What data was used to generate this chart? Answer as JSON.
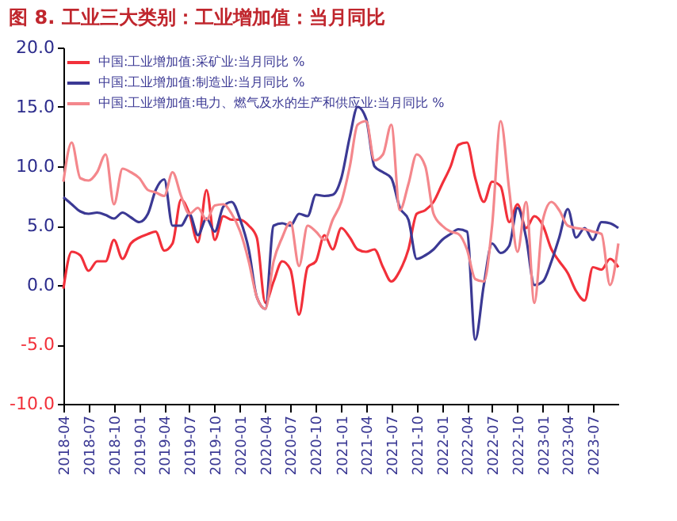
{
  "chart_data": {
    "type": "line",
    "title": "图 8. 工业三大类别：工业增加值：当月同比",
    "x": [
      "2018-04",
      "2018-05",
      "2018-06",
      "2018-07",
      "2018-08",
      "2018-09",
      "2018-10",
      "2018-11",
      "2018-12",
      "2019-01",
      "2019-02",
      "2019-03",
      "2019-04",
      "2019-05",
      "2019-06",
      "2019-07",
      "2019-08",
      "2019-09",
      "2019-10",
      "2019-11",
      "2019-12",
      "2020-01",
      "2020-02",
      "2020-03",
      "2020-04",
      "2020-05",
      "2020-06",
      "2020-07",
      "2020-08",
      "2020-09",
      "2020-10",
      "2020-11",
      "2020-12",
      "2021-01",
      "2021-02",
      "2021-03",
      "2021-04",
      "2021-05",
      "2021-06",
      "2021-07",
      "2021-08",
      "2021-09",
      "2021-10",
      "2021-11",
      "2021-12",
      "2022-01",
      "2022-02",
      "2022-03",
      "2022-04",
      "2022-05",
      "2022-06",
      "2022-07",
      "2022-08",
      "2022-09",
      "2022-10",
      "2022-11",
      "2022-12",
      "2023-01",
      "2023-02",
      "2023-03",
      "2023-04",
      "2023-05",
      "2023-06",
      "2023-07",
      "2023-08",
      "2023-09",
      "2023-10"
    ],
    "series": [
      {
        "name": "中国:工业增加值:采矿业:当月同比 %",
        "color": "#f2303a",
        "values": [
          -0.3,
          2.8,
          2.5,
          1.2,
          2.0,
          2.0,
          3.8,
          2.2,
          3.5,
          4.0,
          4.3,
          4.5,
          2.9,
          3.5,
          7.2,
          6.0,
          3.6,
          8.0,
          3.8,
          5.8,
          5.5,
          5.5,
          5.0,
          4.0,
          -1.5,
          0.3,
          2.0,
          1.3,
          -2.5,
          1.5,
          2.0,
          4.2,
          3.0,
          4.8,
          4.0,
          3.0,
          2.8,
          3.0,
          1.5,
          0.3,
          1.2,
          3.0,
          6.0,
          6.3,
          7.0,
          8.5,
          10.0,
          11.8,
          12.0,
          9.0,
          7.0,
          8.7,
          8.3,
          5.3,
          6.8,
          4.8,
          5.8,
          5.0,
          3.0,
          2.0,
          1.0,
          -0.5,
          -1.3,
          1.5,
          1.3,
          2.2,
          1.5
        ]
      },
      {
        "name": "中国:工业增加值:制造业:当月同比 %",
        "color": "#3b3994",
        "values": [
          7.4,
          6.8,
          6.2,
          6.0,
          6.1,
          5.9,
          5.6,
          6.1,
          5.7,
          5.3,
          6.0,
          8.0,
          8.9,
          5.0,
          5.0,
          6.0,
          4.2,
          5.6,
          4.5,
          6.6,
          7.0,
          5.5,
          3.0,
          -1.0,
          -2.0,
          5.0,
          5.2,
          5.0,
          6.0,
          5.8,
          7.6,
          7.5,
          7.6,
          9.0,
          12.5,
          15.0,
          14.0,
          10.0,
          9.5,
          9.0,
          6.5,
          5.5,
          2.2,
          2.5,
          3.0,
          3.8,
          4.3,
          4.7,
          4.5,
          -4.6,
          0.0,
          3.5,
          2.7,
          3.3,
          6.5,
          4.0,
          0.0,
          0.3,
          2.0,
          4.0,
          6.4,
          4.0,
          4.8,
          3.8,
          5.3,
          5.2,
          4.8
        ]
      },
      {
        "name": "中国:工业增加值:电力、燃气及水的生产和供应业:当月同比 %",
        "color": "#f4878c",
        "values": [
          8.7,
          12.0,
          9.0,
          8.8,
          9.5,
          11.0,
          6.8,
          9.8,
          9.5,
          9.0,
          8.0,
          7.8,
          7.5,
          9.5,
          7.5,
          6.0,
          6.5,
          5.5,
          6.7,
          6.8,
          6.0,
          4.5,
          2.0,
          -1.0,
          -2.0,
          2.0,
          4.0,
          5.3,
          1.6,
          5.0,
          4.5,
          3.8,
          5.5,
          7.0,
          10.0,
          13.5,
          13.8,
          10.5,
          11.0,
          13.5,
          6.3,
          8.5,
          11.0,
          10.0,
          6.0,
          5.0,
          4.5,
          4.3,
          3.0,
          0.5,
          0.3,
          5.0,
          13.8,
          8.0,
          2.8,
          7.0,
          -1.5,
          5.5,
          7.0,
          6.3,
          5.0,
          4.8,
          4.7,
          4.5,
          4.3,
          0.0,
          3.5
        ]
      }
    ],
    "xlim": [
      "2018-04",
      "2023-10"
    ],
    "xticks": [
      "2018-04",
      "2018-07",
      "2018-10",
      "2019-01",
      "2019-04",
      "2019-07",
      "2019-10",
      "2020-01",
      "2020-04",
      "2020-07",
      "2020-10",
      "2021-01",
      "2021-04",
      "2021-07",
      "2021-10",
      "2022-01",
      "2022-04",
      "2022-07",
      "2022-10",
      "2023-01",
      "2023-04",
      "2023-07"
    ],
    "ylim": [
      -10,
      20
    ],
    "yticks": [
      {
        "value": -10,
        "label": "-10.0"
      },
      {
        "value": -5,
        "label": "-5.0"
      },
      {
        "value": 0,
        "label": "0.0"
      },
      {
        "value": 5,
        "label": "5.0"
      },
      {
        "value": 10,
        "label": "10.0"
      },
      {
        "value": 15,
        "label": "15.0"
      },
      {
        "value": 20,
        "label": "20.0"
      }
    ],
    "legend": "top left",
    "grid": false,
    "marker": "none",
    "line_style": "solid"
  }
}
